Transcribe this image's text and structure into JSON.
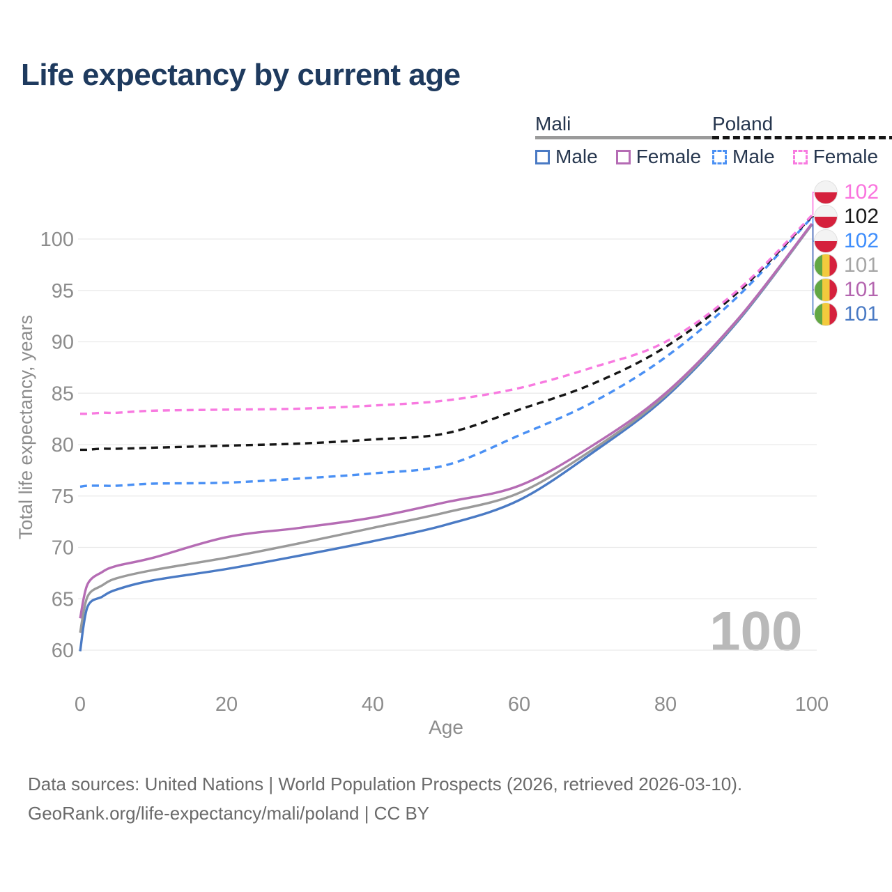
{
  "title": "Life expectancy by current age",
  "legend": {
    "groups": [
      {
        "label": "Mali",
        "underline_style": "solid",
        "underline_color": "#9a9a9a",
        "items": [
          {
            "label": "Male",
            "color": "#4a7ac4",
            "dashed": false
          },
          {
            "label": "Female",
            "color": "#b56cb4",
            "dashed": false
          }
        ]
      },
      {
        "label": "Poland",
        "underline_style": "dashed",
        "underline_color": "#161616",
        "items": [
          {
            "label": "Male",
            "color": "#4a90f4",
            "dashed": true
          },
          {
            "label": "Female",
            "color": "#f87ae0",
            "dashed": true
          }
        ]
      }
    ]
  },
  "y_axis": {
    "label": "Total life expectancy, years",
    "ticks": [
      100,
      95,
      90,
      85,
      80,
      75,
      70,
      65,
      60
    ]
  },
  "x_axis": {
    "label": "Age",
    "ticks": [
      0,
      20,
      40,
      60,
      80,
      100
    ]
  },
  "watermark": "100",
  "end_labels": [
    {
      "value": "102",
      "flag": "poland",
      "color": "#fa74de",
      "series": "Poland Female"
    },
    {
      "value": "102",
      "flag": "poland",
      "color": "#1a1a1a",
      "series": "Poland (both sexes)"
    },
    {
      "value": "102",
      "flag": "poland",
      "color": "#3f8efc",
      "series": "Poland Male"
    },
    {
      "value": "101",
      "flag": "mali",
      "color": "#a6a6a6",
      "series": "Mali (both sexes)"
    },
    {
      "value": "101",
      "flag": "mali",
      "color": "#b465af",
      "series": "Mali Female"
    },
    {
      "value": "101",
      "flag": "mali",
      "color": "#4a7ac4",
      "series": "Mali Male"
    }
  ],
  "footer": {
    "line1": "Data sources: United Nations | World Population Prospects (2026, retrieved 2026-03-10).",
    "line2": "GeoRank.org/life-expectancy/mali/poland | CC BY"
  },
  "chart_data": {
    "type": "line",
    "title": "Life expectancy by current age",
    "xlabel": "Age",
    "ylabel": "Total life expectancy, years",
    "xlim": [
      0,
      100
    ],
    "ylim": [
      57,
      104
    ],
    "grid": "horizontal",
    "legend_position": "top-right",
    "x": [
      0,
      1,
      3,
      5,
      10,
      20,
      30,
      40,
      50,
      60,
      70,
      80,
      90,
      100
    ],
    "series": [
      {
        "name": "Mali Male",
        "color": "#4a7ac4",
        "dashed": false,
        "values": [
          59.9,
          64.2,
          65.2,
          65.9,
          66.8,
          67.9,
          69.2,
          70.6,
          72.2,
          74.6,
          79.2,
          84.6,
          92.1,
          101.4
        ]
      },
      {
        "name": "Mali (both sexes)",
        "color": "#9a9a9a",
        "dashed": false,
        "values": [
          61.7,
          65.2,
          66.3,
          67.0,
          67.8,
          69.0,
          70.4,
          71.9,
          73.4,
          75.3,
          79.5,
          84.8,
          92.2,
          101.4
        ]
      },
      {
        "name": "Mali Female",
        "color": "#b56cb4",
        "dashed": false,
        "values": [
          63.1,
          66.4,
          67.6,
          68.2,
          69.0,
          71.0,
          71.9,
          72.9,
          74.4,
          76.0,
          79.9,
          85.0,
          92.3,
          101.5
        ]
      },
      {
        "name": "Poland Male",
        "color": "#4a90f4",
        "dashed": true,
        "values": [
          75.9,
          76.0,
          76.0,
          76.0,
          76.2,
          76.3,
          76.7,
          77.2,
          78.0,
          80.9,
          84.1,
          88.5,
          94.5,
          102.1
        ]
      },
      {
        "name": "Poland (both sexes)",
        "color": "#161616",
        "dashed": true,
        "values": [
          79.5,
          79.5,
          79.6,
          79.6,
          79.7,
          79.9,
          80.1,
          80.5,
          81.1,
          83.4,
          85.9,
          89.5,
          94.9,
          102.2
        ]
      },
      {
        "name": "Poland Female",
        "color": "#f87ae0",
        "dashed": true,
        "values": [
          83.0,
          83.0,
          83.1,
          83.1,
          83.3,
          83.4,
          83.5,
          83.8,
          84.3,
          85.5,
          87.5,
          90.0,
          95.1,
          102.3
        ]
      }
    ]
  }
}
